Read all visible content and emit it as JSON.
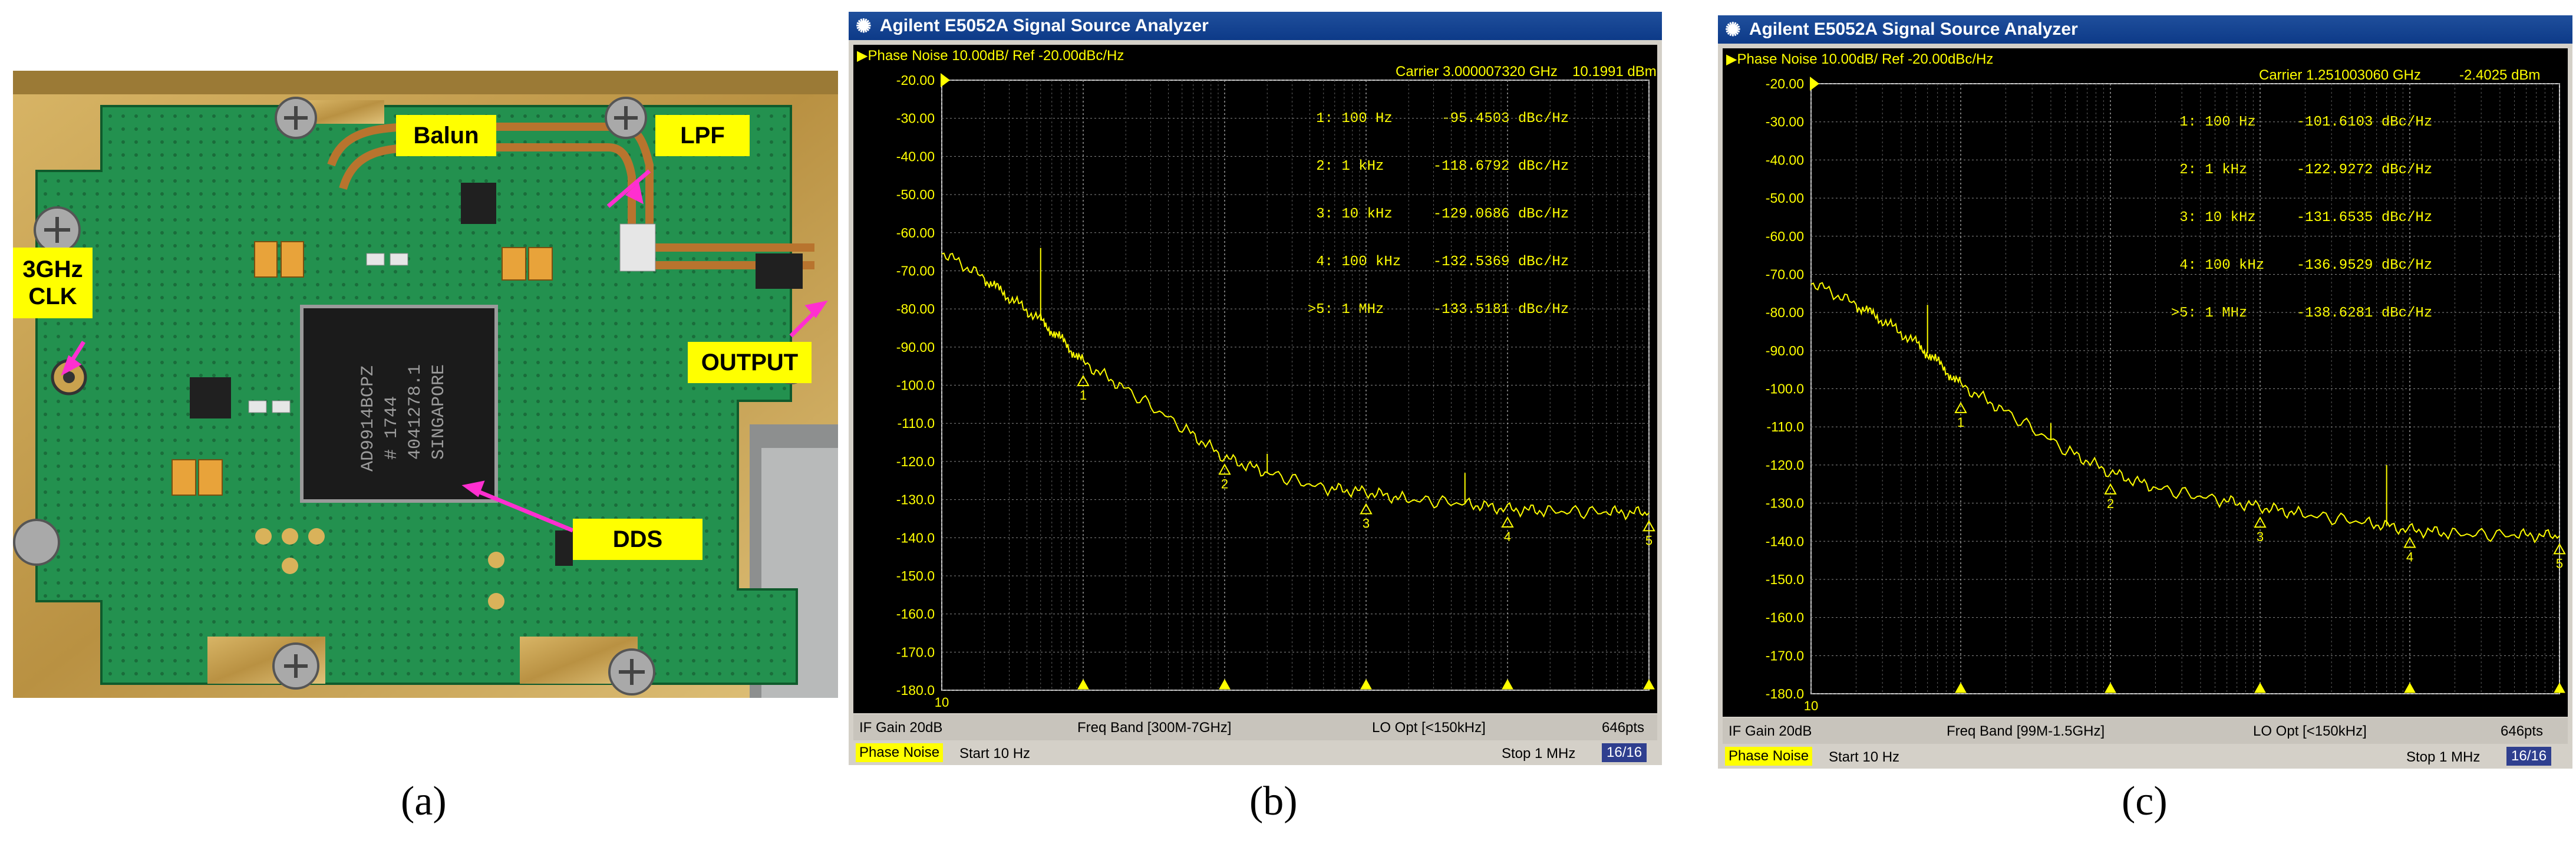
{
  "panels": {
    "a": {
      "label": "(a)",
      "callouts": {
        "balun": "Balun",
        "lpf": "LPF",
        "clk_line1": "3GHz",
        "clk_line2": "CLK",
        "output": "OUTPUT",
        "dds": "DDS"
      },
      "chip_text": [
        "AD9914BCPZ",
        "# 1744",
        "4041278.1",
        "SINGAPORE"
      ],
      "colors": {
        "board": "#1e8a4a",
        "gold": "#c9a24e",
        "callout": "#ffff00",
        "arrow": "#ff2fd0"
      }
    },
    "b": {
      "label": "(b)",
      "window_title": "Agilent E5052A Signal Source Analyzer",
      "header": "Phase Noise 10.00dB/ Ref -20.00dBc/Hz",
      "carrier": "Carrier 3.000007320 GHz",
      "power": "10.1991 dBm",
      "markers": [
        {
          "id": "1:",
          "freq": "100 Hz",
          "value": "-95.4503",
          "unit": "dBc/Hz"
        },
        {
          "id": "2:",
          "freq": "1 kHz",
          "value": "-118.6792",
          "unit": "dBc/Hz"
        },
        {
          "id": "3:",
          "freq": "10 kHz",
          "value": "-129.0686",
          "unit": "dBc/Hz"
        },
        {
          "id": "4:",
          "freq": "100 kHz",
          "value": "-132.5369",
          "unit": "dBc/Hz"
        },
        {
          "id": ">5:",
          "freq": "1 MHz",
          "value": "-133.5181",
          "unit": "dBc/Hz"
        }
      ],
      "status": {
        "if_gain": "IF Gain 20dB",
        "freq_band": "Freq Band [300M-7GHz]",
        "lo_opt": "LO Opt [<150kHz]",
        "points": "646pts"
      },
      "bottom": {
        "mode": "Phase Noise",
        "start": "Start 10 Hz",
        "stop": "Stop 1 MHz",
        "page": "16/16"
      }
    },
    "c": {
      "label": "(c)",
      "window_title": "Agilent E5052A Signal Source Analyzer",
      "header": "Phase Noise 10.00dB/ Ref -20.00dBc/Hz",
      "carrier": "Carrier 1.251003060 GHz",
      "power": "-2.4025 dBm",
      "markers": [
        {
          "id": "1:",
          "freq": "100 Hz",
          "value": "-101.6103",
          "unit": "dBc/Hz"
        },
        {
          "id": "2:",
          "freq": "1 kHz",
          "value": "-122.9272",
          "unit": "dBc/Hz"
        },
        {
          "id": "3:",
          "freq": "10 kHz",
          "value": "-131.6535",
          "unit": "dBc/Hz"
        },
        {
          "id": "4:",
          "freq": "100 kHz",
          "value": "-136.9529",
          "unit": "dBc/Hz"
        },
        {
          "id": ">5:",
          "freq": "1 MHz",
          "value": "-138.6281",
          "unit": "dBc/Hz"
        }
      ],
      "status": {
        "if_gain": "IF Gain 20dB",
        "freq_band": "Freq Band [99M-1.5GHz]",
        "lo_opt": "LO Opt [<150kHz]",
        "points": "646pts"
      },
      "bottom": {
        "mode": "Phase Noise",
        "start": "Start 10 Hz",
        "stop": "Stop 1 MHz",
        "page": "16/16"
      }
    }
  },
  "chart_data": [
    {
      "type": "line",
      "x_scale": "log",
      "xlim": [
        10,
        1000000
      ],
      "ylim": [
        -180,
        -20
      ],
      "y_ticks": [
        "-20.00",
        "-30.00",
        "-40.00",
        "-50.00",
        "-60.00",
        "-70.00",
        "-80.00",
        "-90.00",
        "-100.0",
        "-110.0",
        "-120.0",
        "-130.0",
        "-140.0",
        "-150.0",
        "-160.0",
        "-170.0",
        "-180.0"
      ],
      "x_tick_label": "10",
      "grid": true,
      "trace_color": "#ffff00",
      "series": [
        {
          "x": [
            10,
            20,
            30,
            50,
            70,
            100,
            200,
            500,
            1000,
            2000,
            5000,
            10000,
            20000,
            50000,
            100000,
            200000,
            500000,
            1000000
          ],
          "y": [
            -65,
            -72,
            -77,
            -83,
            -88,
            -94,
            -101,
            -111,
            -119,
            -123,
            -127,
            -128,
            -130,
            -131,
            -132.5,
            -133,
            -133.3,
            -133.5
          ]
        }
      ],
      "spurs": [
        {
          "x": 50,
          "y": -64
        },
        {
          "x": 2000,
          "y": -118
        },
        {
          "x": 50000,
          "y": -123
        }
      ],
      "markers": [
        {
          "label": "1",
          "x": 100,
          "y": -95.45
        },
        {
          "label": "2",
          "x": 1000,
          "y": -118.68
        },
        {
          "label": "3",
          "x": 10000,
          "y": -129.07
        },
        {
          "label": "4",
          "x": 100000,
          "y": -132.54
        },
        {
          "label": "5",
          "x": 1000000,
          "y": -133.52
        }
      ]
    },
    {
      "type": "line",
      "x_scale": "log",
      "xlim": [
        10,
        1000000
      ],
      "ylim": [
        -180,
        -20
      ],
      "y_ticks": [
        "-20.00",
        "-30.00",
        "-40.00",
        "-50.00",
        "-60.00",
        "-70.00",
        "-80.00",
        "-90.00",
        "-100.0",
        "-110.0",
        "-120.0",
        "-130.0",
        "-140.0",
        "-150.0",
        "-160.0",
        "-170.0",
        "-180.0"
      ],
      "x_tick_label": "10",
      "grid": true,
      "trace_color": "#ffff00",
      "series": [
        {
          "x": [
            10,
            20,
            30,
            50,
            70,
            100,
            200,
            500,
            1000,
            2000,
            5000,
            10000,
            20000,
            50000,
            100000,
            200000,
            500000,
            1000000
          ],
          "y": [
            -72,
            -78,
            -82,
            -88,
            -93,
            -99,
            -106,
            -116,
            -122,
            -126,
            -129,
            -131,
            -133,
            -135,
            -137,
            -138,
            -138.4,
            -138.6
          ]
        }
      ],
      "spurs": [
        {
          "x": 60,
          "y": -78
        },
        {
          "x": 400,
          "y": -109
        },
        {
          "x": 70000,
          "y": -120
        }
      ],
      "markers": [
        {
          "label": "1",
          "x": 100,
          "y": -101.61
        },
        {
          "label": "2",
          "x": 1000,
          "y": -122.93
        },
        {
          "label": "3",
          "x": 10000,
          "y": -131.65
        },
        {
          "label": "4",
          "x": 100000,
          "y": -136.95
        },
        {
          "label": "5",
          "x": 1000000,
          "y": -138.63
        }
      ]
    }
  ]
}
